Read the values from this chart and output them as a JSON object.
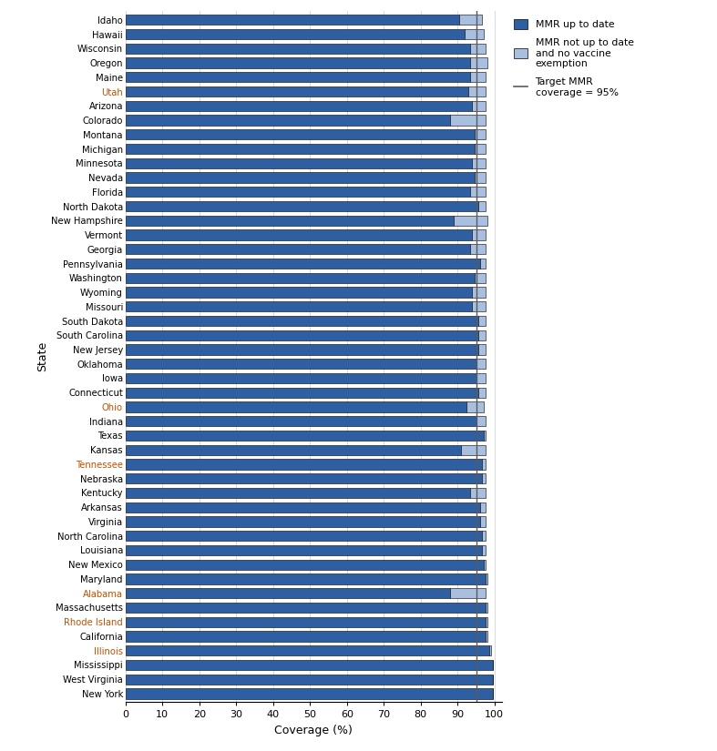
{
  "states": [
    "New York",
    "West Virginia",
    "Mississippi",
    "Illinois",
    "California",
    "Rhode Island",
    "Massachusetts",
    "Alabama",
    "Maryland",
    "New Mexico",
    "Louisiana",
    "North Carolina",
    "Virginia",
    "Arkansas",
    "Kentucky",
    "Nebraska",
    "Tennessee",
    "Kansas",
    "Texas",
    "Indiana",
    "Ohio",
    "Connecticut",
    "Iowa",
    "Oklahoma",
    "New Jersey",
    "South Carolina",
    "South Dakota",
    "Missouri",
    "Wyoming",
    "Washington",
    "Pennsylvania",
    "Georgia",
    "Vermont",
    "New Hampshire",
    "North Dakota",
    "Florida",
    "Nevada",
    "Minnesota",
    "Michigan",
    "Montana",
    "Colorado",
    "Arizona",
    "Utah",
    "Maine",
    "Oregon",
    "Wisconsin",
    "Hawaii",
    "Idaho"
  ],
  "mmr_up_to_date": [
    99.5,
    99.5,
    99.5,
    98.5,
    97.5,
    97.5,
    97.5,
    88.0,
    97.5,
    97.0,
    96.5,
    96.5,
    96.0,
    96.0,
    93.5,
    96.5,
    96.5,
    91.0,
    97.0,
    95.0,
    92.5,
    95.5,
    95.0,
    95.0,
    95.5,
    95.5,
    95.5,
    94.0,
    94.0,
    94.5,
    96.0,
    93.5,
    94.0,
    89.0,
    95.5,
    93.5,
    94.5,
    94.0,
    94.5,
    94.5,
    88.0,
    94.0,
    93.0,
    93.5,
    93.5,
    93.5,
    92.0,
    90.5
  ],
  "mmr_not_up_to_date": [
    0.0,
    0.0,
    0.0,
    0.5,
    0.5,
    0.5,
    0.5,
    9.5,
    0.5,
    0.5,
    1.0,
    1.0,
    1.5,
    1.5,
    4.0,
    1.0,
    1.0,
    6.5,
    0.5,
    2.5,
    4.5,
    2.0,
    2.5,
    2.5,
    2.0,
    2.0,
    2.0,
    3.5,
    3.5,
    3.0,
    1.5,
    4.0,
    3.5,
    9.0,
    2.0,
    4.0,
    3.0,
    3.5,
    3.0,
    3.0,
    9.5,
    3.5,
    4.5,
    4.0,
    4.5,
    4.0,
    5.0,
    6.0
  ],
  "orange_labels": [
    "Utah",
    "Ohio",
    "Tennessee",
    "Alabama",
    "Rhode Island",
    "Illinois"
  ],
  "bar_color_blue": "#2E5FA3",
  "bar_color_light": "#A8BFE0",
  "target_line_color": "#5A5A5A",
  "target_value": 95,
  "xlabel": "Coverage (%)",
  "ylabel": "State",
  "legend_mmr_up": "MMR up to date",
  "legend_mmr_not": "MMR not up to date\nand no vaccine\nexemption",
  "legend_target": "Target MMR\ncoverage = 95%",
  "xlim": [
    0,
    102
  ],
  "xticks": [
    0,
    10,
    20,
    30,
    40,
    50,
    60,
    70,
    80,
    90,
    100
  ]
}
